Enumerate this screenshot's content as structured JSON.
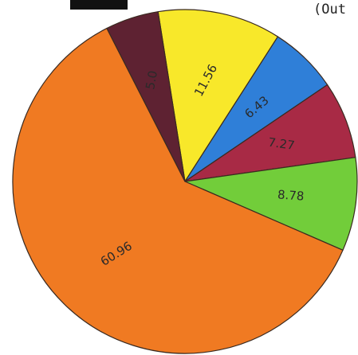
{
  "header": {
    "partial_text": "(Out"
  },
  "chart_data": {
    "type": "pie",
    "title": "",
    "slices": [
      {
        "label": "11.56",
        "value": 11.56,
        "color": "#f8e82a"
      },
      {
        "label": "6.43",
        "value": 6.43,
        "color": "#2f7fd8"
      },
      {
        "label": "7.27",
        "value": 7.27,
        "color": "#a82a45"
      },
      {
        "label": "8.78",
        "value": 8.78,
        "color": "#72cd3a"
      },
      {
        "label": "60.96",
        "value": 60.96,
        "color": "#f07a22"
      },
      {
        "label": "5.0",
        "value": 5.0,
        "color": "#5e2232"
      }
    ],
    "legend": "none",
    "grid": false
  }
}
